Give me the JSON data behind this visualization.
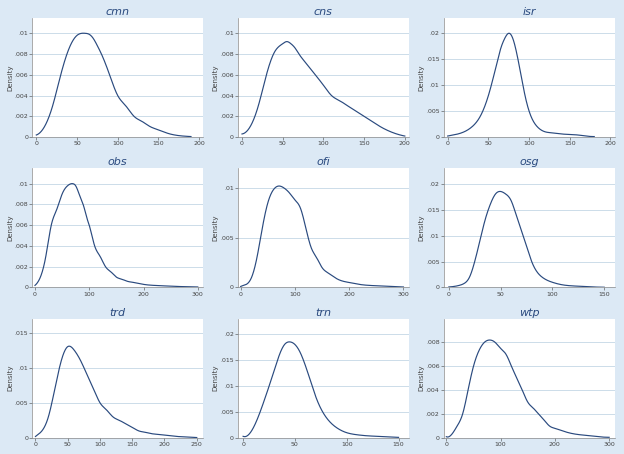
{
  "panels": [
    {
      "title": "cmn",
      "xlim": [
        -5,
        205
      ],
      "xticks": [
        0,
        50,
        100,
        150,
        200
      ],
      "ylim_max": 0.0115,
      "yticks": [
        0,
        0.002,
        0.004,
        0.006,
        0.008,
        0.01
      ],
      "ytick_labels": [
        "0",
        ".002",
        ".004",
        ".006",
        ".008",
        ".01"
      ],
      "curve_x": [
        0,
        10,
        20,
        30,
        40,
        50,
        60,
        65,
        70,
        75,
        80,
        90,
        100,
        110,
        120,
        130,
        140,
        150,
        160,
        170,
        180,
        190
      ],
      "curve_y": [
        0.0002,
        0.001,
        0.003,
        0.006,
        0.0085,
        0.0098,
        0.01,
        0.0099,
        0.0095,
        0.0088,
        0.008,
        0.006,
        0.004,
        0.003,
        0.002,
        0.0015,
        0.001,
        0.0007,
        0.0004,
        0.0002,
        0.0001,
        5e-05
      ]
    },
    {
      "title": "cns",
      "xlim": [
        -5,
        205
      ],
      "xticks": [
        0,
        50,
        100,
        150,
        200
      ],
      "ylim_max": 0.0115,
      "yticks": [
        0,
        0.002,
        0.004,
        0.006,
        0.008,
        0.01
      ],
      "ytick_labels": [
        "0",
        ".002",
        ".004",
        ".006",
        ".008",
        ".01"
      ],
      "curve_x": [
        0,
        10,
        20,
        30,
        40,
        50,
        55,
        60,
        65,
        70,
        80,
        90,
        100,
        110,
        120,
        130,
        140,
        150,
        160,
        170,
        180,
        190,
        200
      ],
      "curve_y": [
        0.0003,
        0.001,
        0.003,
        0.006,
        0.0082,
        0.009,
        0.0092,
        0.009,
        0.0086,
        0.008,
        0.007,
        0.006,
        0.005,
        0.004,
        0.0035,
        0.003,
        0.0025,
        0.002,
        0.0015,
        0.001,
        0.0006,
        0.0003,
        0.0001
      ]
    },
    {
      "title": "isr",
      "xlim": [
        -5,
        205
      ],
      "xticks": [
        0,
        50,
        100,
        150,
        200
      ],
      "ylim_max": 0.023,
      "yticks": [
        0,
        0.005,
        0.01,
        0.015,
        0.02
      ],
      "ytick_labels": [
        "0",
        ".005",
        ".01",
        ".015",
        ".02"
      ],
      "curve_x": [
        0,
        10,
        20,
        30,
        40,
        50,
        60,
        65,
        70,
        75,
        80,
        85,
        90,
        95,
        100,
        110,
        120,
        130,
        140,
        150,
        160,
        170,
        180
      ],
      "curve_y": [
        0.0002,
        0.0005,
        0.001,
        0.002,
        0.004,
        0.008,
        0.014,
        0.017,
        0.019,
        0.02,
        0.019,
        0.016,
        0.012,
        0.008,
        0.005,
        0.002,
        0.001,
        0.0008,
        0.0006,
        0.0005,
        0.0004,
        0.0002,
        0.0001
      ]
    },
    {
      "title": "obs",
      "xlim": [
        -5,
        310
      ],
      "xticks": [
        0,
        100,
        200,
        300
      ],
      "ylim_max": 0.0115,
      "yticks": [
        0,
        0.002,
        0.004,
        0.006,
        0.008,
        0.01
      ],
      "ytick_labels": [
        "0",
        ".002",
        ".004",
        ".006",
        ".008",
        ".01"
      ],
      "curve_x": [
        0,
        10,
        20,
        30,
        40,
        50,
        60,
        70,
        75,
        80,
        85,
        90,
        95,
        100,
        110,
        120,
        130,
        140,
        150,
        160,
        170,
        180,
        200,
        220,
        240,
        260,
        280,
        300
      ],
      "curve_y": [
        0.0002,
        0.001,
        0.003,
        0.006,
        0.0075,
        0.009,
        0.0098,
        0.01,
        0.0098,
        0.0092,
        0.0085,
        0.0078,
        0.0068,
        0.006,
        0.004,
        0.003,
        0.002,
        0.0015,
        0.001,
        0.0008,
        0.0006,
        0.0005,
        0.0003,
        0.0002,
        0.00015,
        0.0001,
        8e-05,
        5e-05
      ]
    },
    {
      "title": "ofi",
      "xlim": [
        -5,
        310
      ],
      "xticks": [
        0,
        100,
        200,
        300
      ],
      "ylim_max": 0.012,
      "yticks": [
        0,
        0.005,
        0.01
      ],
      "ytick_labels": [
        "0",
        ".005",
        ".01"
      ],
      "curve_x": [
        0,
        10,
        20,
        30,
        40,
        50,
        60,
        70,
        80,
        90,
        100,
        110,
        120,
        130,
        140,
        150,
        160,
        180,
        200,
        220,
        240,
        260,
        280,
        300
      ],
      "curve_y": [
        0.0001,
        0.0003,
        0.001,
        0.003,
        0.006,
        0.0085,
        0.0098,
        0.0102,
        0.01,
        0.0095,
        0.0088,
        0.008,
        0.006,
        0.004,
        0.003,
        0.002,
        0.0015,
        0.0008,
        0.0005,
        0.0003,
        0.0002,
        0.00015,
        0.0001,
        5e-05
      ]
    },
    {
      "title": "osg",
      "xlim": [
        -5,
        160
      ],
      "xticks": [
        0,
        50,
        100,
        150
      ],
      "ylim_max": 0.023,
      "yticks": [
        0,
        0.005,
        0.01,
        0.015,
        0.02
      ],
      "ytick_labels": [
        "0",
        ".005",
        ".01",
        ".015",
        ".02"
      ],
      "curve_x": [
        0,
        5,
        10,
        15,
        20,
        25,
        30,
        35,
        40,
        45,
        50,
        55,
        60,
        65,
        70,
        75,
        80,
        90,
        100,
        110,
        120,
        130,
        140,
        150
      ],
      "curve_y": [
        0.0001,
        0.0002,
        0.0004,
        0.0008,
        0.002,
        0.005,
        0.009,
        0.013,
        0.016,
        0.018,
        0.0185,
        0.018,
        0.0168,
        0.014,
        0.011,
        0.008,
        0.005,
        0.002,
        0.001,
        0.0005,
        0.0003,
        0.0002,
        0.0001,
        5e-05
      ]
    },
    {
      "title": "trd",
      "xlim": [
        -5,
        260
      ],
      "xticks": [
        0,
        50,
        100,
        150,
        200,
        250
      ],
      "ylim_max": 0.017,
      "yticks": [
        0,
        0.005,
        0.01,
        0.015
      ],
      "ytick_labels": [
        "0",
        ".005",
        ".01",
        ".015"
      ],
      "curve_x": [
        0,
        10,
        20,
        30,
        40,
        50,
        60,
        70,
        80,
        90,
        100,
        110,
        120,
        130,
        140,
        150,
        160,
        170,
        180,
        190,
        200,
        210,
        220,
        230,
        240,
        250
      ],
      "curve_y": [
        0.0002,
        0.001,
        0.003,
        0.007,
        0.011,
        0.013,
        0.0125,
        0.011,
        0.009,
        0.007,
        0.005,
        0.004,
        0.003,
        0.0025,
        0.002,
        0.0015,
        0.001,
        0.0008,
        0.0006,
        0.0005,
        0.0004,
        0.0003,
        0.0002,
        0.00015,
        0.0001,
        5e-05
      ]
    },
    {
      "title": "trn",
      "xlim": [
        -5,
        160
      ],
      "xticks": [
        0,
        50,
        100,
        150
      ],
      "ylim_max": 0.023,
      "yticks": [
        0,
        0.005,
        0.01,
        0.015,
        0.02
      ],
      "ytick_labels": [
        "0",
        ".005",
        ".01",
        ".015",
        ".02"
      ],
      "curve_x": [
        0,
        10,
        20,
        30,
        35,
        40,
        45,
        50,
        55,
        60,
        65,
        70,
        80,
        90,
        100,
        110,
        120,
        130,
        140,
        150
      ],
      "curve_y": [
        0.0003,
        0.002,
        0.007,
        0.013,
        0.016,
        0.018,
        0.0185,
        0.018,
        0.0165,
        0.014,
        0.011,
        0.008,
        0.004,
        0.002,
        0.001,
        0.0006,
        0.0004,
        0.0003,
        0.0002,
        0.0001
      ]
    },
    {
      "title": "wtp",
      "xlim": [
        -5,
        310
      ],
      "xticks": [
        0,
        100,
        200,
        300
      ],
      "ylim_max": 0.01,
      "yticks": [
        0,
        0.002,
        0.004,
        0.006,
        0.008
      ],
      "ytick_labels": [
        "0",
        ".002",
        ".004",
        ".006",
        ".008"
      ],
      "curve_x": [
        0,
        10,
        20,
        30,
        40,
        50,
        60,
        70,
        80,
        90,
        100,
        110,
        120,
        130,
        140,
        150,
        160,
        170,
        180,
        190,
        200,
        220,
        240,
        260,
        280,
        300
      ],
      "curve_y": [
        0.0001,
        0.0003,
        0.001,
        0.002,
        0.004,
        0.006,
        0.0073,
        0.008,
        0.0082,
        0.008,
        0.0075,
        0.007,
        0.006,
        0.005,
        0.004,
        0.003,
        0.0025,
        0.002,
        0.0015,
        0.001,
        0.0008,
        0.0005,
        0.0003,
        0.0002,
        0.0001,
        5e-05
      ]
    }
  ],
  "line_color": "#2a4a7f",
  "bg_color": "#dce9f5",
  "plot_bg_color": "#ffffff",
  "grid_line_color": "#b8cfe0",
  "title_color": "#2a4a7f",
  "tick_color": "#444444",
  "axis_label": "Density",
  "figsize": [
    6.24,
    4.54
  ],
  "dpi": 100
}
